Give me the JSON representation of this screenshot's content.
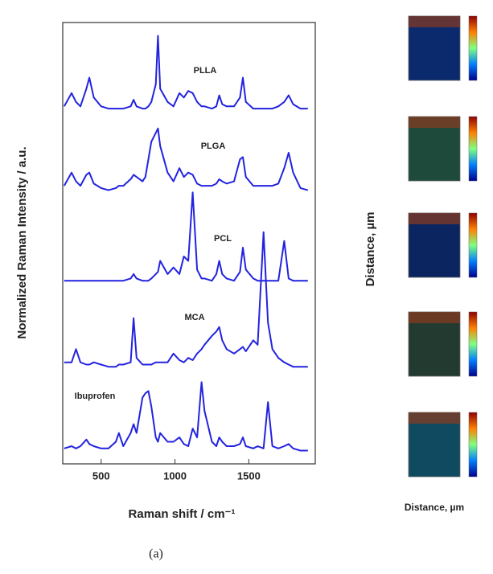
{
  "chart_data": {
    "type": "line",
    "xlabel": "Raman shift / cm⁻¹",
    "ylabel": "Normalized Raman Intensity / a.u.",
    "x": [
      250,
      300,
      330,
      360,
      400,
      420,
      450,
      500,
      550,
      600,
      620,
      650,
      700,
      720,
      740,
      780,
      800,
      820,
      840,
      870,
      885,
      900,
      950,
      990,
      1030,
      1060,
      1090,
      1120,
      1150,
      1180,
      1200,
      1250,
      1280,
      1300,
      1320,
      1350,
      1400,
      1440,
      1460,
      1480,
      1530,
      1560,
      1600,
      1630,
      1660,
      1700,
      1740,
      1770,
      1800,
      1850,
      1900
    ],
    "xlim": [
      240,
      1950
    ],
    "xticks": [
      500,
      1000,
      1500
    ],
    "ylim": [
      0,
      10
    ],
    "series": [
      {
        "name": "PLLA",
        "color": "#2323e0",
        "values": [
          8.1,
          8.4,
          8.2,
          8.1,
          8.5,
          8.75,
          8.3,
          8.1,
          8.05,
          8.05,
          8.05,
          8.05,
          8.1,
          8.25,
          8.1,
          8.05,
          8.05,
          8.1,
          8.2,
          8.6,
          9.7,
          8.5,
          8.2,
          8.1,
          8.4,
          8.3,
          8.45,
          8.4,
          8.2,
          8.1,
          8.1,
          8.05,
          8.1,
          8.35,
          8.15,
          8.1,
          8.1,
          8.3,
          8.75,
          8.2,
          8.05,
          8.05,
          8.05,
          8.05,
          8.05,
          8.1,
          8.2,
          8.35,
          8.15,
          8.05,
          8.05
        ]
      },
      {
        "name": "PLGA",
        "color": "#2323e0",
        "values": [
          6.3,
          6.6,
          6.4,
          6.3,
          6.55,
          6.6,
          6.35,
          6.25,
          6.2,
          6.25,
          6.3,
          6.3,
          6.45,
          6.55,
          6.5,
          6.4,
          6.5,
          6.9,
          7.3,
          7.5,
          7.6,
          7.2,
          6.6,
          6.4,
          6.7,
          6.5,
          6.6,
          6.55,
          6.35,
          6.3,
          6.3,
          6.3,
          6.35,
          6.45,
          6.4,
          6.35,
          6.4,
          6.9,
          6.95,
          6.5,
          6.3,
          6.3,
          6.3,
          6.3,
          6.3,
          6.35,
          6.7,
          7.05,
          6.6,
          6.25,
          6.2
        ]
      },
      {
        "name": "PCL",
        "color": "#2323e0",
        "values": [
          4.15,
          4.15,
          4.15,
          4.15,
          4.15,
          4.15,
          4.15,
          4.15,
          4.15,
          4.15,
          4.15,
          4.15,
          4.2,
          4.3,
          4.2,
          4.15,
          4.15,
          4.15,
          4.2,
          4.3,
          4.35,
          4.6,
          4.3,
          4.45,
          4.3,
          4.7,
          4.6,
          6.15,
          4.4,
          4.2,
          4.2,
          4.15,
          4.3,
          4.6,
          4.3,
          4.2,
          4.15,
          4.35,
          4.9,
          4.4,
          4.2,
          4.15,
          4.15,
          4.15,
          4.15,
          4.15,
          5.05,
          4.2,
          4.15,
          4.15,
          4.15
        ]
      },
      {
        "name": "MCA",
        "color": "#2323e0",
        "values": [
          2.3,
          2.3,
          2.6,
          2.3,
          2.25,
          2.25,
          2.3,
          2.25,
          2.2,
          2.2,
          2.25,
          2.25,
          2.3,
          3.3,
          2.4,
          2.25,
          2.25,
          2.25,
          2.25,
          2.3,
          2.3,
          2.3,
          2.3,
          2.5,
          2.35,
          2.3,
          2.4,
          2.35,
          2.5,
          2.6,
          2.7,
          2.9,
          3.0,
          3.1,
          2.8,
          2.6,
          2.5,
          2.6,
          2.65,
          2.55,
          2.8,
          2.7,
          5.25,
          3.2,
          2.6,
          2.4,
          2.3,
          2.25,
          2.2,
          2.2,
          2.2
        ]
      },
      {
        "name": "Ibuprofen",
        "color": "#2323e0",
        "values": [
          0.35,
          0.4,
          0.35,
          0.4,
          0.55,
          0.45,
          0.4,
          0.35,
          0.35,
          0.5,
          0.7,
          0.4,
          0.7,
          0.9,
          0.7,
          1.5,
          1.6,
          1.65,
          1.3,
          0.6,
          0.5,
          0.7,
          0.5,
          0.5,
          0.6,
          0.45,
          0.4,
          0.8,
          0.6,
          1.85,
          1.2,
          0.5,
          0.4,
          0.6,
          0.5,
          0.4,
          0.4,
          0.45,
          0.6,
          0.4,
          0.35,
          0.4,
          0.35,
          1.4,
          0.4,
          0.35,
          0.4,
          0.45,
          0.35,
          0.3,
          0.3
        ]
      }
    ]
  },
  "side_panel": {
    "ylabel": "Distance, µm",
    "xlabel": "Distance, µm"
  },
  "caption": "(a)"
}
